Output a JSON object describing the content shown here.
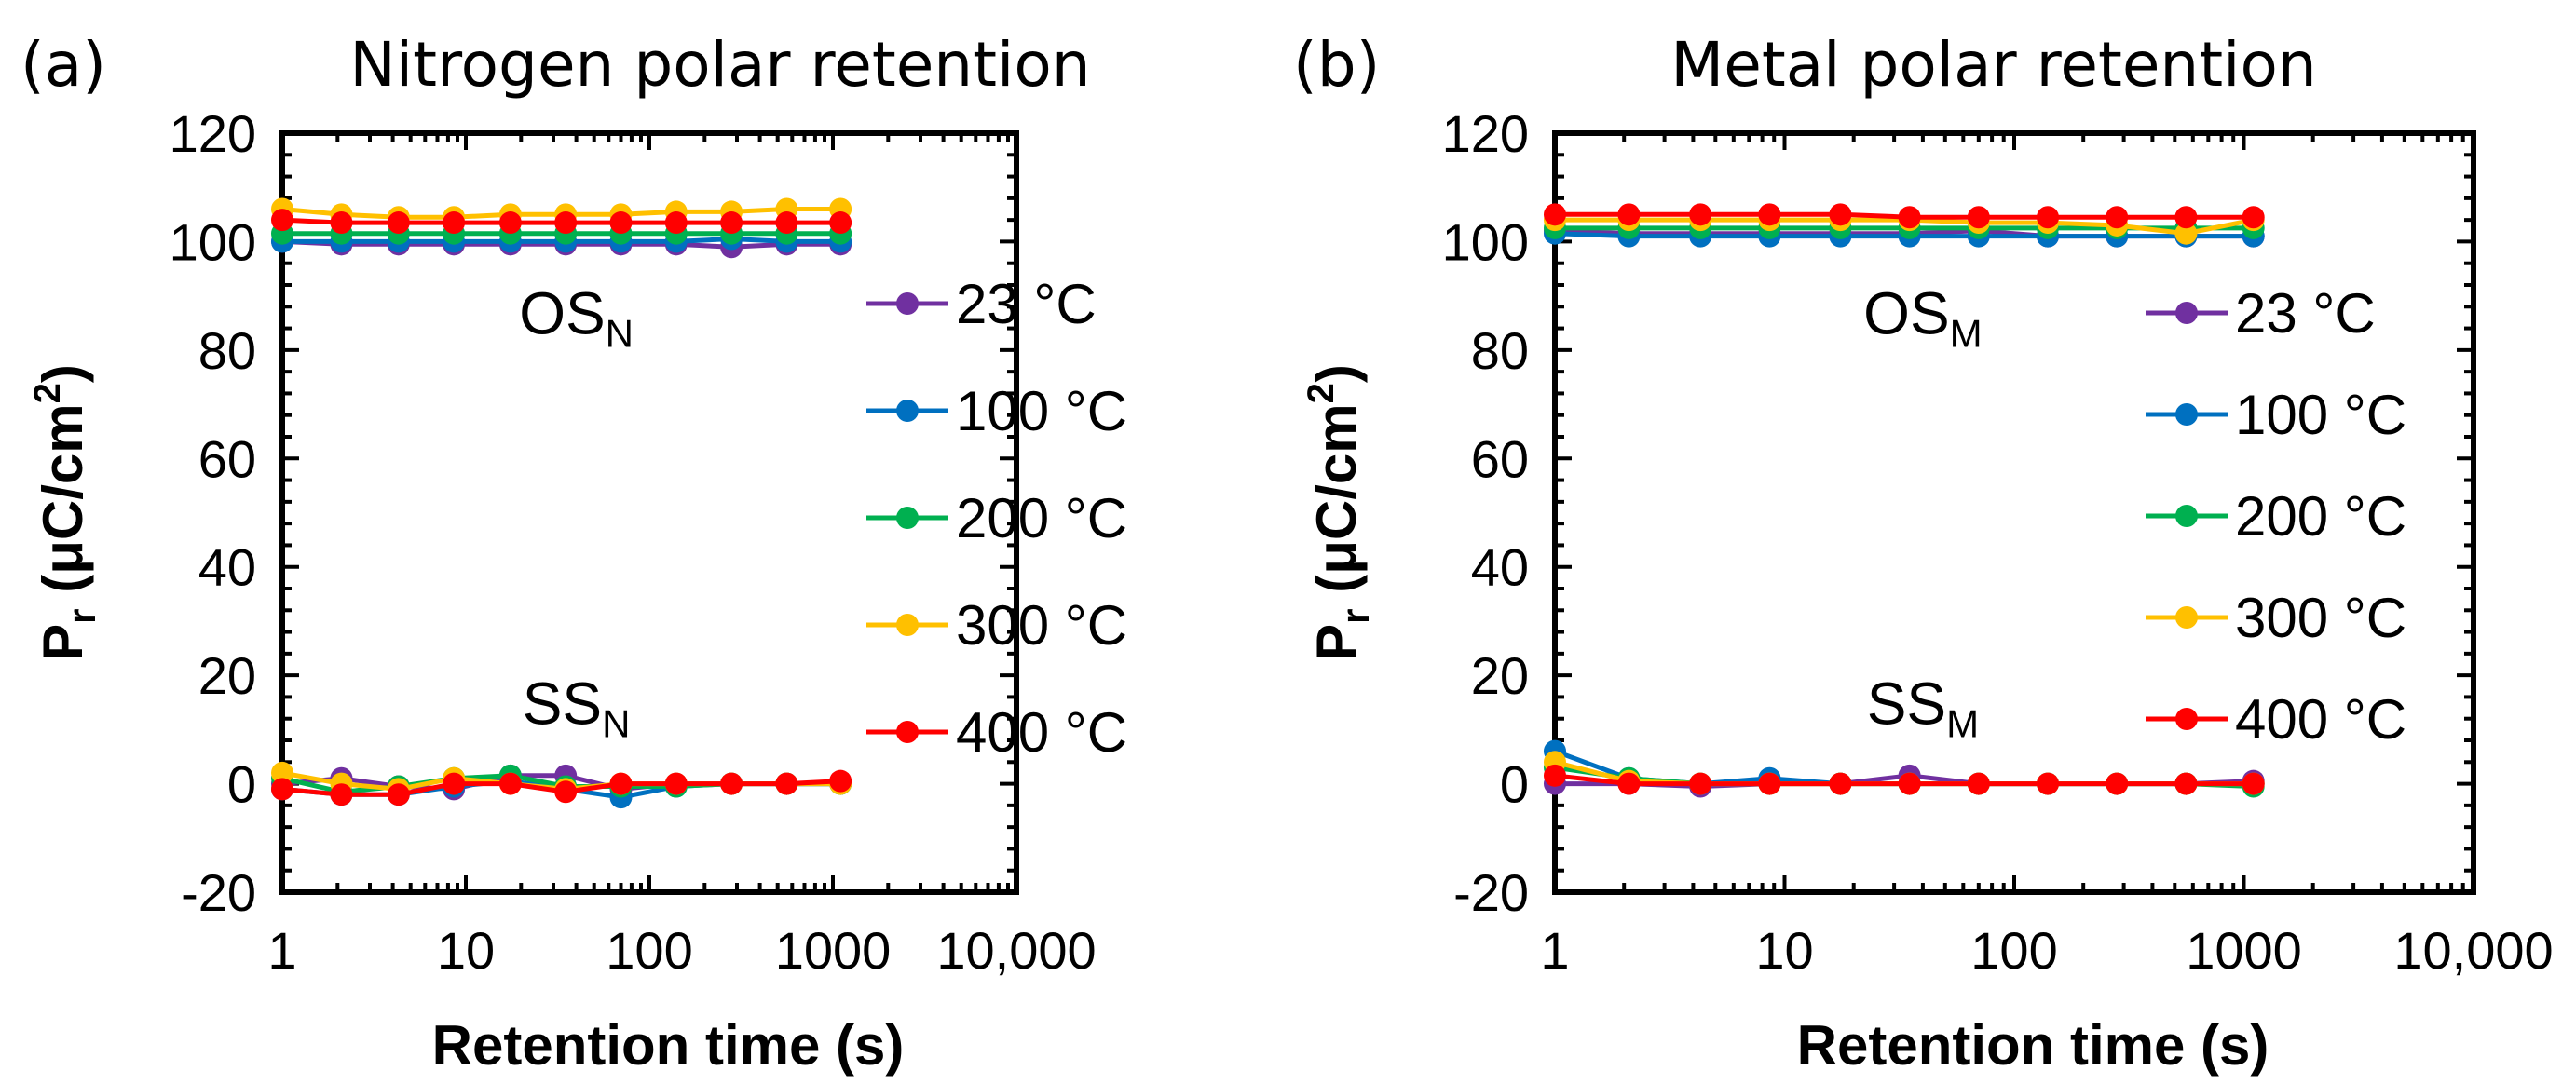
{
  "chart_data": [
    {
      "panel_label": "(a)",
      "type": "line",
      "title": "Nitrogen polar retention",
      "xlabel": "Retention time (s)",
      "ylabel": "P",
      "ylabel_sub": "r",
      "ylabel_unit": "(μC/cm",
      "ylabel_sup": "2",
      "ylabel_close": ")",
      "xscale": "log",
      "xlim": [
        1,
        10000
      ],
      "ylim": [
        -20,
        120
      ],
      "x_ticks": [
        1,
        10,
        100,
        1000,
        10000
      ],
      "x_tick_labels": [
        "1",
        "10",
        "100",
        "1000",
        "10,000"
      ],
      "y_ticks": [
        -20,
        0,
        20,
        40,
        60,
        80,
        100,
        120
      ],
      "y_tick_labels": [
        "-20",
        "0",
        "20",
        "40",
        "60",
        "80",
        "100",
        "120"
      ],
      "annotations": [
        {
          "main": "OS",
          "sub": "N",
          "x": 40,
          "y": 83
        },
        {
          "main": "SS",
          "sub": "N",
          "x": 40,
          "y": 11
        }
      ],
      "x": [
        1,
        2.1,
        4.3,
        8.6,
        17.5,
        35,
        70,
        140,
        280,
        560,
        1100
      ],
      "series": [
        {
          "name": "23 °C",
          "color": "#7030A0",
          "os": [
            100,
            99.5,
            99.5,
            99.5,
            99.5,
            99.5,
            99.5,
            99.5,
            99,
            99.5,
            99.5
          ],
          "ss": [
            0,
            1,
            -0.5,
            -1,
            1.5,
            1.5,
            -1,
            0,
            0,
            0,
            0
          ]
        },
        {
          "name": "100 °C",
          "color": "#0070C0",
          "os": [
            100,
            100,
            100,
            100,
            100,
            100,
            100,
            100,
            100.5,
            100,
            100
          ],
          "ss": [
            -1,
            -2,
            -2,
            -0.5,
            0.5,
            -1,
            -2.5,
            -0.5,
            0,
            0,
            0
          ]
        },
        {
          "name": "200 °C",
          "color": "#00B050",
          "os": [
            101.5,
            101.5,
            101.5,
            101.5,
            101.5,
            101.5,
            101.5,
            101.5,
            101.5,
            101.5,
            101.5
          ],
          "ss": [
            1,
            -1.5,
            -0.5,
            1,
            1.5,
            -0.5,
            -0.5,
            -0.5,
            0,
            0,
            0
          ]
        },
        {
          "name": "300 °C",
          "color": "#FFC000",
          "os": [
            106,
            105,
            104.5,
            104.5,
            105,
            105,
            105,
            105.5,
            105.5,
            106,
            106
          ],
          "ss": [
            2,
            0,
            -1,
            1,
            0,
            -1,
            0,
            0,
            0,
            0,
            0
          ]
        },
        {
          "name": "400 °C",
          "color": "#FF0000",
          "os": [
            104,
            103.5,
            103.5,
            103.5,
            103.5,
            103.5,
            103.5,
            103.5,
            103.5,
            103.5,
            103.5
          ],
          "ss": [
            -1,
            -2,
            -2,
            0,
            0,
            -1.5,
            0,
            0,
            0,
            0,
            0.5
          ]
        }
      ]
    },
    {
      "panel_label": "(b)",
      "type": "line",
      "title": "Metal polar retention",
      "xlabel": "Retention time (s)",
      "ylabel": "P",
      "ylabel_sub": "r",
      "ylabel_unit": "(μC/cm",
      "ylabel_sup": "2",
      "ylabel_close": ")",
      "xscale": "log",
      "xlim": [
        1,
        10000
      ],
      "ylim": [
        -20,
        120
      ],
      "x_ticks": [
        1,
        10,
        100,
        1000,
        10000
      ],
      "x_tick_labels": [
        "1",
        "10",
        "100",
        "1000",
        "10,000"
      ],
      "y_ticks": [
        -20,
        0,
        20,
        40,
        60,
        80,
        100,
        120
      ],
      "y_tick_labels": [
        "-20",
        "0",
        "20",
        "40",
        "60",
        "80",
        "100",
        "120"
      ],
      "annotations": [
        {
          "main": "OS",
          "sub": "M",
          "x": 40,
          "y": 83
        },
        {
          "main": "SS",
          "sub": "M",
          "x": 40,
          "y": 11
        }
      ],
      "x": [
        1,
        2.1,
        4.3,
        8.6,
        17.5,
        35,
        70,
        140,
        280,
        560,
        1100
      ],
      "series": [
        {
          "name": "23 °C",
          "color": "#7030A0",
          "os": [
            102,
            101.5,
            101.5,
            101.5,
            101.5,
            101.5,
            102,
            101,
            101,
            101,
            101
          ],
          "ss": [
            0,
            0,
            -0.5,
            0,
            0,
            1.5,
            0,
            0,
            0,
            0,
            0.5
          ]
        },
        {
          "name": "100 °C",
          "color": "#0070C0",
          "os": [
            101.5,
            101,
            101,
            101,
            101,
            101,
            101,
            101,
            101,
            101,
            101
          ],
          "ss": [
            6,
            1,
            0,
            1,
            0,
            0,
            0,
            0,
            0,
            0,
            0
          ]
        },
        {
          "name": "200 °C",
          "color": "#00B050",
          "os": [
            102.5,
            102.5,
            102.5,
            102.5,
            102.5,
            102.5,
            102.5,
            102.5,
            102.5,
            102.5,
            102.5
          ],
          "ss": [
            3,
            1,
            0,
            0,
            0,
            0,
            0,
            0,
            0,
            0,
            -0.5
          ]
        },
        {
          "name": "300 °C",
          "color": "#FFC000",
          "os": [
            104,
            104,
            104,
            104,
            104,
            104,
            103.5,
            103.5,
            103,
            101.5,
            104
          ],
          "ss": [
            4,
            0.5,
            0,
            0,
            0,
            0,
            0,
            0,
            0,
            0,
            0
          ]
        },
        {
          "name": "400 °C",
          "color": "#FF0000",
          "os": [
            105,
            105,
            105,
            105,
            105,
            104.5,
            104.5,
            104.5,
            104.5,
            104.5,
            104.5
          ],
          "ss": [
            1.5,
            0,
            0,
            0,
            0,
            0,
            0,
            0,
            0,
            0,
            0
          ]
        }
      ]
    }
  ]
}
